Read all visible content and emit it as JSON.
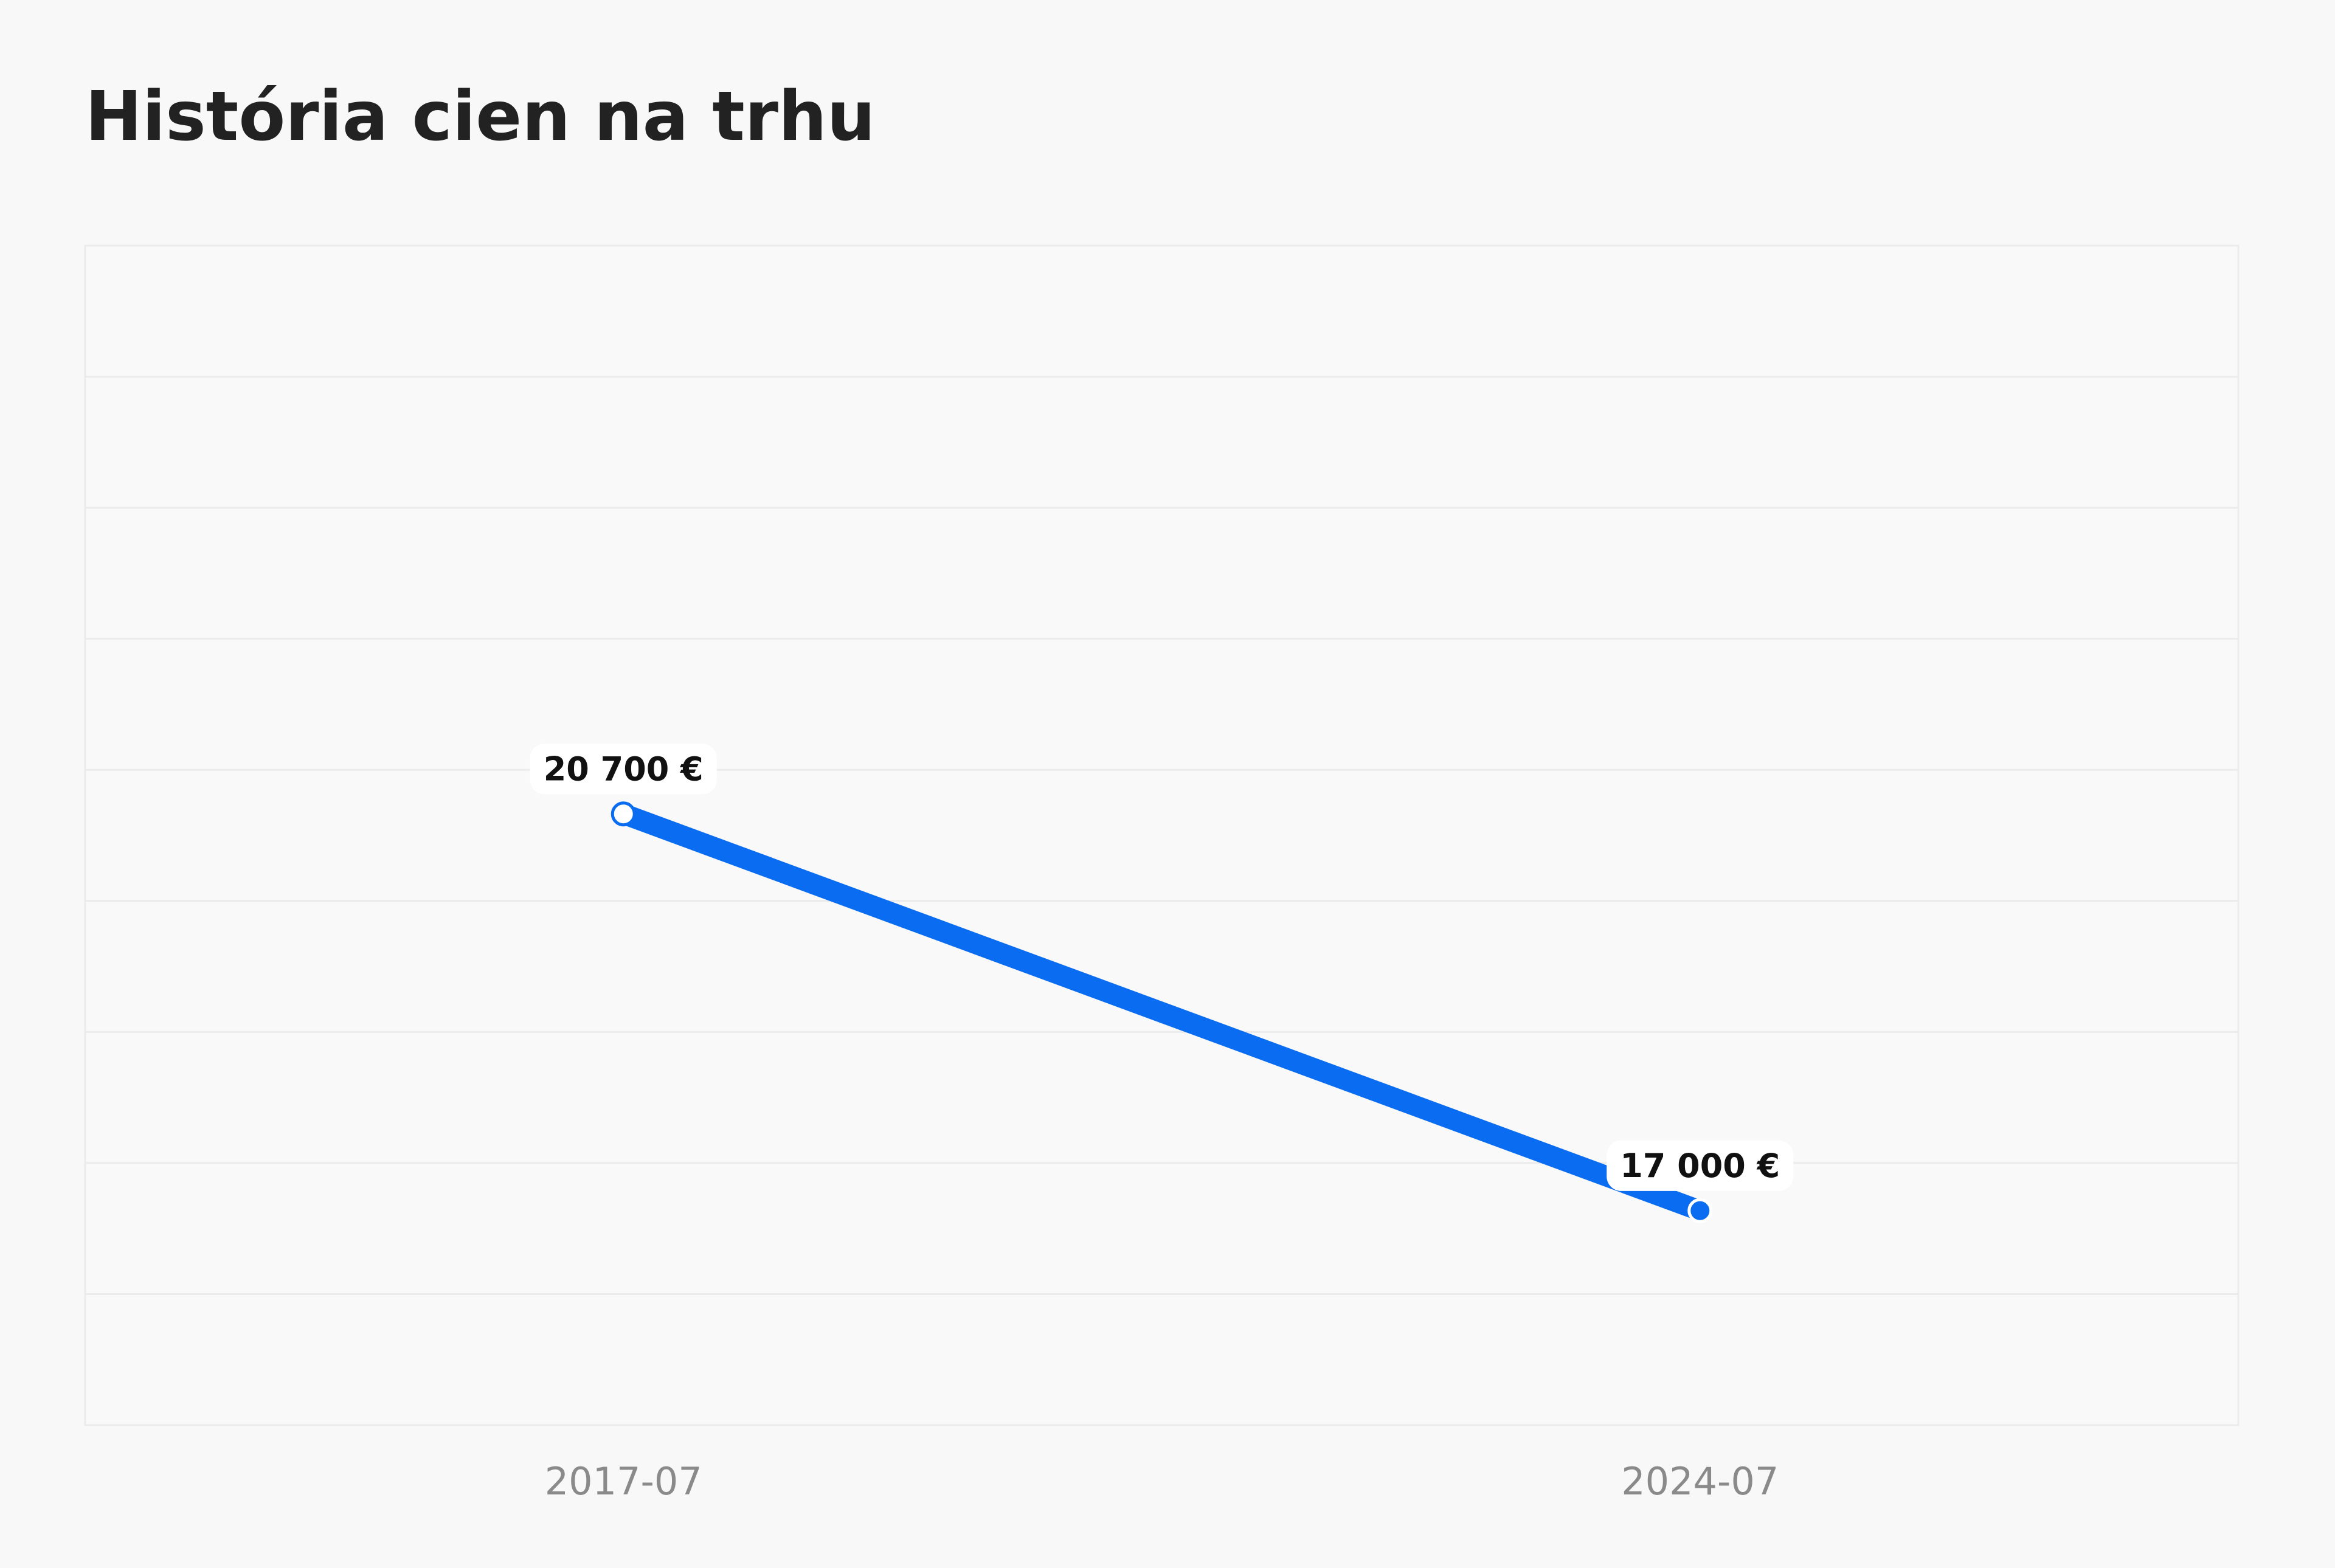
{
  "chart_data": {
    "type": "line",
    "title": "História cien na trhu",
    "categories": [
      "2017-07",
      "2024-07"
    ],
    "series": [
      {
        "color": "#0a6cf0",
        "values": [
          20700,
          17000
        ],
        "value_labels": [
          "20 700 €",
          "17 000 €"
        ]
      }
    ],
    "ylim": [
      15000,
      26000
    ]
  }
}
